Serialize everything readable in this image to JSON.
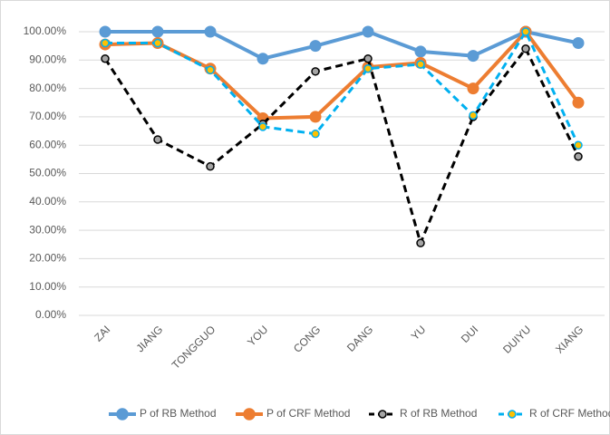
{
  "chart_data": {
    "type": "line",
    "categories": [
      "ZAI",
      "JIANG",
      "TONGGUO",
      "YOU",
      "CONG",
      "DANG",
      "YU",
      "DUI",
      "DUIYU",
      "XIANG"
    ],
    "series": [
      {
        "name": "P of RB Method",
        "color": "#5b9bd5",
        "dash": false,
        "marker_fill": "#5b9bd5",
        "values": [
          100,
          100,
          100,
          90.5,
          95,
          100,
          93,
          91.5,
          100,
          96
        ]
      },
      {
        "name": "P of CRF Method",
        "color": "#ed7d31",
        "dash": false,
        "marker_fill": "#ed7d31",
        "values": [
          95.5,
          96,
          87,
          69.5,
          70,
          87.5,
          89,
          80,
          100,
          75
        ]
      },
      {
        "name": "R of RB Method",
        "color": "#000000",
        "dash": true,
        "marker_fill": "#a5a5a5",
        "values": [
          90.5,
          62,
          52.5,
          67.5,
          86,
          90.5,
          25.5,
          70,
          94,
          56
        ]
      },
      {
        "name": "R of CRF Method",
        "color": "#00b0f0",
        "dash": true,
        "marker_fill": "#ffc000",
        "values": [
          96,
          96,
          86.5,
          66.5,
          64,
          87,
          88.5,
          70.5,
          100,
          60
        ]
      }
    ],
    "ylim": [
      0,
      100
    ],
    "yticks": [
      {
        "value": 0,
        "label": "0.00%"
      },
      {
        "value": 10,
        "label": "10.00%"
      },
      {
        "value": 20,
        "label": "20.00%"
      },
      {
        "value": 30,
        "label": "30.00%"
      },
      {
        "value": 40,
        "label": "40.00%"
      },
      {
        "value": 50,
        "label": "50.00%"
      },
      {
        "value": 60,
        "label": "60.00%"
      },
      {
        "value": 70,
        "label": "70.00%"
      },
      {
        "value": 80,
        "label": "80.00%"
      },
      {
        "value": 90,
        "label": "90.00%"
      },
      {
        "value": 100,
        "label": "100.00%"
      }
    ],
    "grid": true,
    "legend": "bottom"
  }
}
